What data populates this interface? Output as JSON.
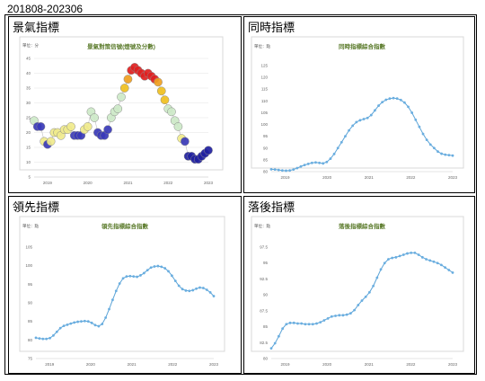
{
  "period": "201808-202306",
  "colors": {
    "line": "#5ba3d6",
    "marker": "#6aaee0",
    "title": "#5a7a2a",
    "grid": "#e3e3e3",
    "axis": "#666666"
  },
  "panels": [
    {
      "key": "p1",
      "title": "景氣指標"
    },
    {
      "key": "p2",
      "title": "同時指標"
    },
    {
      "key": "p3",
      "title": "領先指標"
    },
    {
      "key": "p4",
      "title": "落後指標"
    }
  ],
  "chart_data": [
    {
      "type": "scatter",
      "title": "景氣對策信號(燈號及分數)",
      "unit_label": "單位：分",
      "ylim": [
        5,
        45
      ],
      "yticks": [
        "5",
        "10",
        "15",
        "20",
        "25",
        "30",
        "35",
        "40",
        "45"
      ],
      "xtick_labels": [
        "2019",
        "2020",
        "2021",
        "2022",
        "2023"
      ],
      "xtick_index": [
        4,
        16,
        28,
        40,
        52
      ],
      "grid": true,
      "values": [
        24,
        22,
        22,
        17,
        16,
        17,
        20,
        20,
        19,
        21,
        21,
        22,
        19,
        19,
        19,
        21,
        22,
        27,
        25,
        20,
        19,
        19,
        21,
        25,
        27,
        28,
        32,
        35,
        38,
        41,
        42,
        41,
        40,
        39,
        40,
        39,
        38,
        37,
        34,
        31,
        28,
        27,
        24,
        22,
        18,
        17,
        12,
        12,
        11,
        11,
        12,
        13,
        14
      ],
      "marker_colors": [
        "#cde9c8",
        "#3a3ab8",
        "#3a3ab8",
        "#f0ea8c",
        "#3a3ab8",
        "#f0ea8c",
        "#f0ea8c",
        "#f0ea8c",
        "#f0ea8c",
        "#f0ea8c",
        "#f0ea8c",
        "#f0ea8c",
        "#3a3ab8",
        "#3a3ab8",
        "#3a3ab8",
        "#f0ea8c",
        "#f0ea8c",
        "#cde9c8",
        "#cde9c8",
        "#3a3ab8",
        "#3a3ab8",
        "#3a3ab8",
        "#3a3ab8",
        "#cde9c8",
        "#cde9c8",
        "#cde9c8",
        "#cde9c8",
        "#f0c020",
        "#f0a020",
        "#e02020",
        "#e02020",
        "#e02020",
        "#e02020",
        "#e02020",
        "#e02020",
        "#e02020",
        "#e02020",
        "#f0a020",
        "#f0c020",
        "#f0c020",
        "#cde9c8",
        "#cde9c8",
        "#cde9c8",
        "#cde9c8",
        "#f0ea8c",
        "#3a3ab8",
        "#2020a0",
        "#2020a0",
        "#2020a0",
        "#2020a0",
        "#2020a0",
        "#2020a0",
        "#2020a0"
      ]
    },
    {
      "type": "line",
      "title": "同時指標綜合指數",
      "unit_label": "單位：點",
      "ylim": [
        80,
        125
      ],
      "yticks": [
        "80",
        "85",
        "90",
        "95",
        "100",
        "105",
        "110",
        "115",
        "120",
        "125"
      ],
      "xtick_labels": [
        "2019",
        "2020",
        "2021",
        "2022",
        "2023"
      ],
      "xtick_index": [
        4,
        16,
        28,
        40,
        52
      ],
      "grid": false,
      "values": [
        81.0,
        80.9,
        80.7,
        80.5,
        80.4,
        80.5,
        80.9,
        81.5,
        82.2,
        82.8,
        83.3,
        83.7,
        83.9,
        83.7,
        83.5,
        84.1,
        85.5,
        87.5,
        90.0,
        92.5,
        95.0,
        97.5,
        99.5,
        101.0,
        101.8,
        102.3,
        102.8,
        104.0,
        106.0,
        108.0,
        109.5,
        110.5,
        111.0,
        111.2,
        111.0,
        110.4,
        109.3,
        107.5,
        105.0,
        102.0,
        99.0,
        96.0,
        93.5,
        91.5,
        90.0,
        88.5,
        87.6,
        87.2,
        87.0,
        86.8
      ]
    },
    {
      "type": "line",
      "title": "領先指標綜合指數",
      "unit_label": "單位：點",
      "ylim": [
        75,
        105
      ],
      "yticks": [
        "75",
        "80",
        "85",
        "90",
        "95",
        "100",
        "105"
      ],
      "xtick_labels": [
        "2019",
        "2020",
        "2021",
        "2022",
        "2023"
      ],
      "xtick_index": [
        4,
        16,
        28,
        40,
        52
      ],
      "grid": false,
      "values": [
        80.6,
        80.4,
        80.3,
        80.3,
        80.5,
        81.2,
        82.2,
        83.2,
        83.8,
        84.1,
        84.4,
        84.7,
        84.9,
        85.0,
        85.1,
        85.0,
        84.6,
        84.0,
        83.7,
        84.3,
        86.0,
        88.3,
        90.8,
        93.2,
        95.2,
        96.6,
        97.1,
        97.2,
        97.1,
        97.0,
        97.4,
        98.0,
        98.8,
        99.5,
        99.8,
        99.9,
        99.7,
        99.3,
        98.5,
        97.3,
        95.9,
        94.6,
        93.7,
        93.3,
        93.2,
        93.4,
        93.8,
        94.1,
        94.0,
        93.5,
        92.8,
        91.8
      ]
    },
    {
      "type": "line",
      "title": "落後指標綜合指數",
      "unit_label": "單位：點",
      "ylim": [
        80,
        97.5
      ],
      "yticks": [
        "80",
        "82.5",
        "85",
        "87.5",
        "90",
        "92.5",
        "95",
        "97.5"
      ],
      "xtick_labels": [
        "2019",
        "2020",
        "2021",
        "2022",
        "2023"
      ],
      "xtick_index": [
        4,
        16,
        28,
        40,
        52
      ],
      "grid": false,
      "values": [
        81.6,
        82.4,
        83.5,
        84.7,
        85.4,
        85.6,
        85.6,
        85.5,
        85.5,
        85.4,
        85.4,
        85.4,
        85.5,
        85.7,
        86.0,
        86.3,
        86.6,
        86.7,
        86.8,
        86.8,
        86.9,
        87.1,
        87.6,
        88.4,
        89.1,
        89.7,
        90.4,
        91.4,
        92.7,
        94.0,
        95.0,
        95.6,
        95.8,
        95.9,
        96.1,
        96.3,
        96.5,
        96.6,
        96.6,
        96.3,
        95.9,
        95.6,
        95.4,
        95.2,
        95.0,
        94.7,
        94.3,
        93.9,
        93.5
      ]
    }
  ]
}
